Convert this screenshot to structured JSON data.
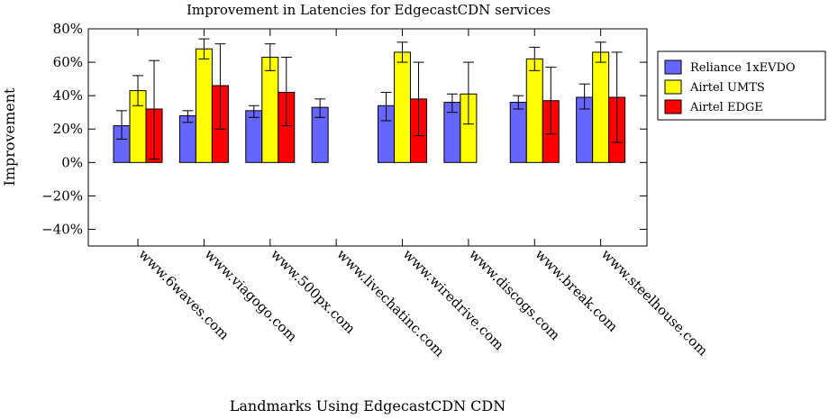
{
  "chart_data": {
    "type": "bar",
    "title": "Improvement in Latencies for EdgecastCDN services",
    "xlabel": "Landmarks Using EdgecastCDN CDN",
    "ylabel": "Improvement",
    "ylim": [
      -50,
      80
    ],
    "yticks": [
      -40,
      -20,
      0,
      20,
      40,
      60,
      80
    ],
    "ytick_labels": [
      "−40%",
      "−20%",
      "0%",
      "20%",
      "40%",
      "60%",
      "80%"
    ],
    "categories": [
      "www.6waves.com",
      "www.viagogo.com",
      "www.500px.com",
      "www.livechatinc.com",
      "www.wiredrive.com",
      "www.discogs.com",
      "www.break.com",
      "www.steelhouse.com"
    ],
    "legend_position": "right",
    "series": [
      {
        "name": "Reliance 1xEVDO",
        "color": "#6666ff",
        "values": [
          22,
          28,
          31,
          33,
          34,
          36,
          36,
          39
        ],
        "err_low": [
          14,
          24,
          27,
          27,
          25,
          30,
          32,
          32
        ],
        "err_high": [
          31,
          31,
          34,
          38,
          42,
          41,
          40,
          47
        ]
      },
      {
        "name": "Airtel UMTS",
        "color": "#ffff00",
        "values": [
          43,
          68,
          63,
          null,
          66,
          41,
          62,
          66
        ],
        "err_low": [
          34,
          62,
          55,
          null,
          60,
          23,
          55,
          60
        ],
        "err_high": [
          52,
          74,
          71,
          null,
          72,
          60,
          69,
          72
        ]
      },
      {
        "name": "Airtel EDGE",
        "color": "#ff0000",
        "values": [
          32,
          46,
          42,
          null,
          38,
          null,
          37,
          39
        ],
        "err_low": [
          2,
          20,
          22,
          null,
          16,
          null,
          17,
          12
        ],
        "err_high": [
          61,
          71,
          63,
          null,
          60,
          null,
          57,
          66
        ]
      }
    ]
  }
}
